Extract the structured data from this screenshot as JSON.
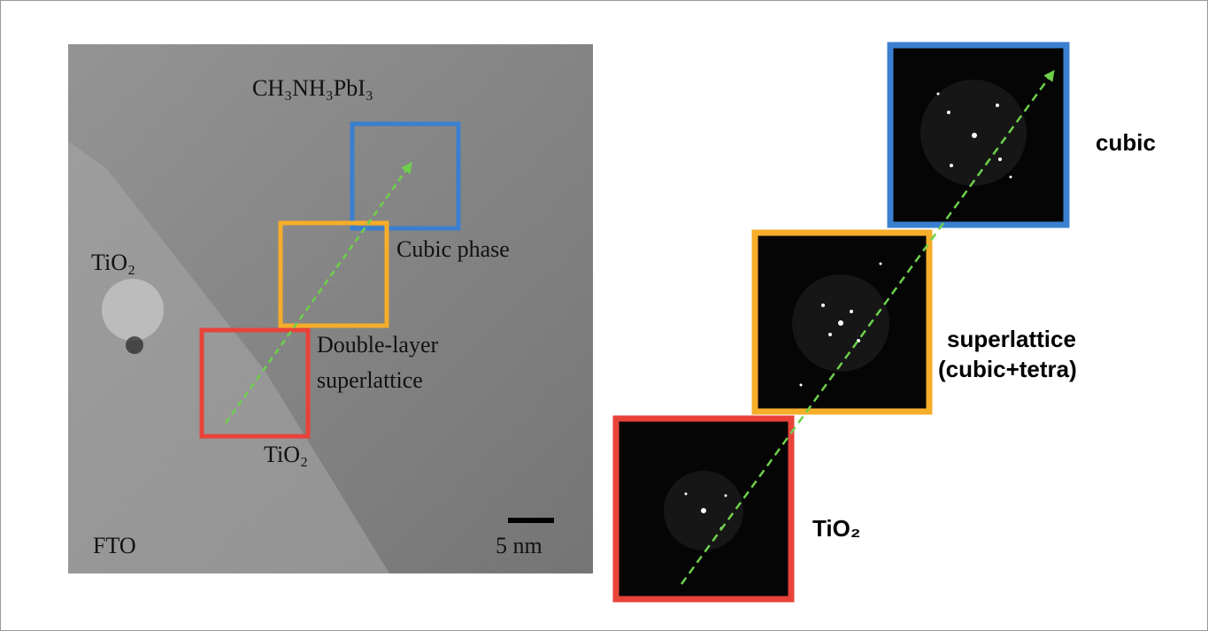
{
  "tem_image": {
    "compound": "CH₃NH₃PbI₃",
    "tio2_left": "TiO₂",
    "cubic_label": "Cubic phase",
    "double_layer": [
      "Double-layer",
      "superlattice"
    ],
    "tio2_bottom": "TiO₂",
    "fto": "FTO",
    "scale_bar": "5 nm"
  },
  "fft_panels": {
    "cubic": "cubic",
    "superlattice": [
      "superlattice",
      "(cubic+tetra)"
    ],
    "tio2": "TiO₂"
  }
}
